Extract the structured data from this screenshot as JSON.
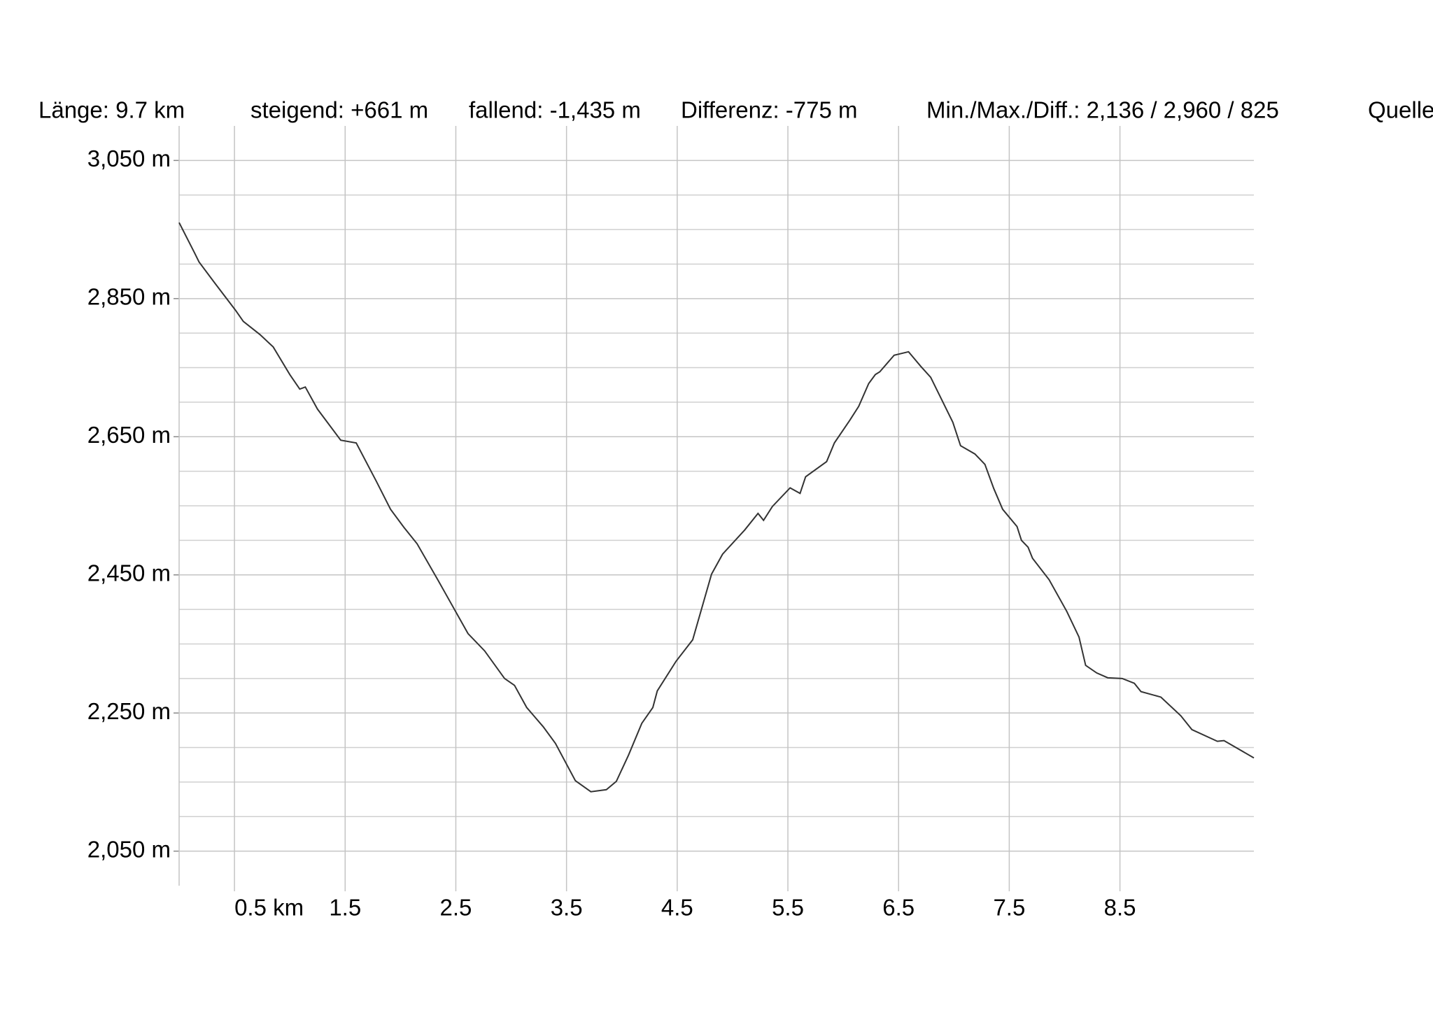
{
  "chart_data": {
    "type": "line",
    "header": [
      "Länge: 9.7 km",
      "steigend: +661 m",
      "fallend: -1,435 m",
      "Differenz: -775 m",
      "Min./Max./Diff.: 2,136 / 2,960 / 825",
      "Quelle"
    ],
    "x": [
      0,
      0.14,
      0.18,
      0.32,
      0.51,
      0.58,
      0.73,
      0.85,
      1.0,
      1.09,
      1.14,
      1.25,
      1.46,
      1.6,
      1.78,
      1.91,
      2.03,
      2.15,
      2.34,
      2.61,
      2.76,
      2.94,
      3.03,
      3.14,
      3.29,
      3.4,
      3.58,
      3.72,
      3.86,
      3.95,
      4.06,
      4.18,
      4.28,
      4.32,
      4.49,
      4.64,
      4.81,
      4.91,
      5.11,
      5.23,
      5.28,
      5.36,
      5.52,
      5.61,
      5.66,
      5.85,
      5.92,
      6.06,
      6.14,
      6.23,
      6.29,
      6.33,
      6.46,
      6.59,
      6.7,
      6.79,
      6.99,
      7.06,
      7.19,
      7.28,
      7.36,
      7.44,
      7.57,
      7.61,
      7.67,
      7.71,
      7.86,
      8.02,
      8.13,
      8.19,
      8.29,
      8.39,
      8.52,
      8.63,
      8.69,
      8.87,
      9.05,
      9.15,
      9.38,
      9.44,
      9.71
    ],
    "series": [
      {
        "color": "#333333",
        "values": [
          2960,
          2916,
          2903,
          2873,
          2833,
          2817,
          2798,
          2780,
          2740,
          2719,
          2722,
          2690,
          2645,
          2641,
          2586,
          2545,
          2519,
          2495,
          2442,
          2365,
          2340,
          2300,
          2290,
          2258,
          2230,
          2206,
          2152,
          2136,
          2139,
          2151,
          2189,
          2235,
          2258,
          2282,
          2325,
          2356,
          2451,
          2480,
          2515,
          2539,
          2529,
          2549,
          2576,
          2568,
          2592,
          2614,
          2641,
          2674,
          2694,
          2727,
          2740,
          2744,
          2768,
          2773,
          2752,
          2736,
          2671,
          2637,
          2625,
          2610,
          2575,
          2545,
          2520,
          2500,
          2490,
          2474,
          2443,
          2397,
          2360,
          2319,
          2308,
          2301,
          2300,
          2293,
          2281,
          2273,
          2246,
          2226,
          2209,
          2210,
          2185
        ]
      }
    ],
    "xlim": [
      0,
      9.71
    ],
    "xticks": [
      {
        "value": 0.5,
        "label": "0.5 km"
      },
      1.5,
      2.5,
      3.5,
      4.5,
      5.5,
      6.5,
      7.5,
      8.5
    ],
    "ylim": [
      2000,
      3100
    ],
    "yticks": [
      {
        "value": 2050,
        "label": "2,050 m"
      },
      {
        "value": 2250,
        "label": "2,250 m"
      },
      {
        "value": 2450,
        "label": "2,450 m"
      },
      {
        "value": 2650,
        "label": "2,650 m"
      },
      {
        "value": 2850,
        "label": "2,850 m"
      },
      {
        "value": 3050,
        "label": "3,050 m"
      }
    ],
    "yminorticks": [
      2100,
      2150,
      2200,
      2300,
      2350,
      2400,
      2500,
      2550,
      2600,
      2700,
      2750,
      2800,
      2900,
      2950,
      3000
    ],
    "grid": true
  }
}
